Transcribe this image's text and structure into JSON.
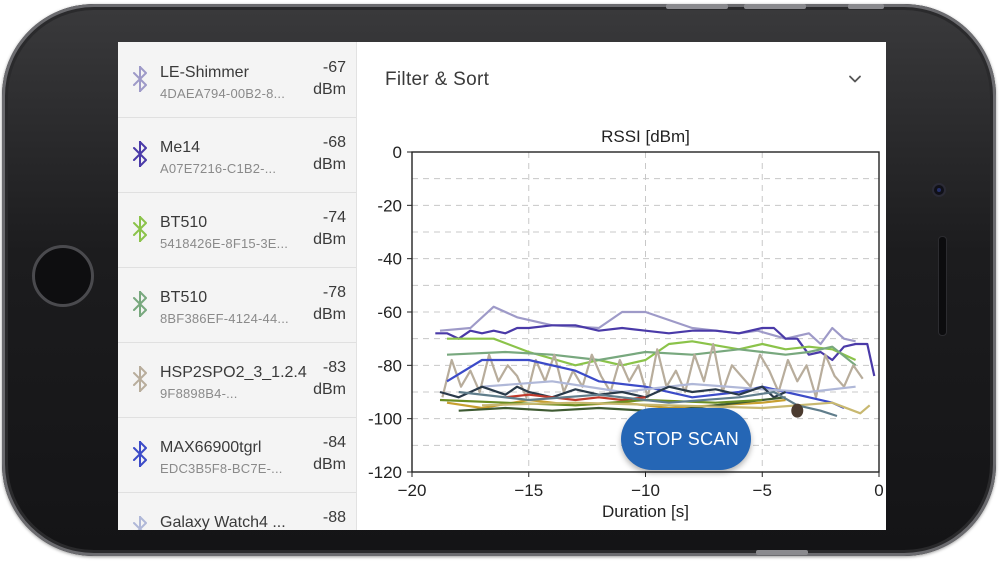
{
  "devices": [
    {
      "name": "LE-Shimmer",
      "id": "4DAEA794-00B2-8...",
      "rssi_value": "-67",
      "rssi_unit": "dBm",
      "color": "#9e9ac8"
    },
    {
      "name": "Me14",
      "id": "A07E7216-C1B2-...",
      "rssi_value": "-68",
      "rssi_unit": "dBm",
      "color": "#4a3aa8"
    },
    {
      "name": "BT510",
      "id": "5418426E-8F15-3E...",
      "rssi_value": "-74",
      "rssi_unit": "dBm",
      "color": "#8bc34a"
    },
    {
      "name": "BT510",
      "id": "8BF386EF-4124-44...",
      "rssi_value": "-78",
      "rssi_unit": "dBm",
      "color": "#78a87e"
    },
    {
      "name": "HSP2SPO2_3_1.2.4",
      "id": "9F8898B4-...",
      "rssi_value": "-83",
      "rssi_unit": "dBm",
      "color": "#b8ad9c"
    },
    {
      "name": "MAX66900tgrl",
      "id": "EDC3B5F8-BC7E-...",
      "rssi_value": "-84",
      "rssi_unit": "dBm",
      "color": "#3c4bc8"
    },
    {
      "name": "Galaxy Watch4 ...",
      "id": "",
      "rssi_value": "-88",
      "rssi_unit": "",
      "color": "#b0b8d8"
    }
  ],
  "filter": {
    "title": "Filter & Sort",
    "icon": "chevron-down-icon"
  },
  "fab": {
    "label": "STOP SCAN",
    "color": "#2566b5"
  },
  "chart_data": {
    "type": "line",
    "title": "RSSI [dBm]",
    "xlabel": "Duration [s]",
    "ylabel": "",
    "xlim": [
      -20,
      0
    ],
    "ylim": [
      -120,
      0
    ],
    "xticks": [
      -20,
      -15,
      -10,
      -5,
      0
    ],
    "xtick_labels": [
      "−20",
      "−15",
      "−10",
      "−5",
      "0"
    ],
    "yticks": [
      0,
      -20,
      -40,
      -60,
      -80,
      -100,
      -120
    ],
    "grid": true,
    "series": [
      {
        "color": "#9e9ac8",
        "x": [
          -18.8,
          -17.5,
          -16.5,
          -15.5,
          -14,
          -12,
          -11,
          -10,
          -8,
          -6,
          -5.2,
          -4,
          -3,
          -2.5,
          -2,
          -1.5,
          -1
        ],
        "y": [
          -67,
          -66,
          -58,
          -62,
          -65,
          -66,
          -60,
          -60,
          -66,
          -68,
          -67,
          -70,
          -68,
          -72,
          -66,
          -70,
          -71
        ]
      },
      {
        "color": "#4a3aa8",
        "x": [
          -19,
          -18.5,
          -18,
          -17.5,
          -17,
          -16.5,
          -16,
          -15.5,
          -15,
          -14,
          -13,
          -12,
          -11,
          -10,
          -9,
          -8,
          -7,
          -6,
          -5,
          -4.5,
          -4,
          -3.5,
          -3,
          -2.5,
          -2,
          -1.5,
          -1,
          -0.5,
          -0.2
        ],
        "y": [
          -68,
          -68,
          -70,
          -67,
          -68,
          -67,
          -68,
          -66,
          -66,
          -65,
          -65,
          -67,
          -66,
          -67,
          -68,
          -67,
          -67,
          -68,
          -66,
          -66,
          -70,
          -70,
          -76,
          -75,
          -78,
          -73,
          -72,
          -72,
          -84
        ]
      },
      {
        "color": "#8bc34a",
        "x": [
          -18.5,
          -16.5,
          -15,
          -13,
          -12,
          -11,
          -10,
          -9,
          -8,
          -6,
          -5,
          -4,
          -3,
          -2,
          -1
        ],
        "y": [
          -70,
          -70,
          -75,
          -80,
          -78,
          -80,
          -78,
          -72,
          -71,
          -74,
          -72,
          -74,
          -73,
          -74,
          -78
        ]
      },
      {
        "color": "#78a87e",
        "x": [
          -18.5,
          -16,
          -14,
          -12,
          -10,
          -8,
          -6,
          -5,
          -4,
          -3,
          -2,
          -1
        ],
        "y": [
          -76,
          -75,
          -76,
          -78,
          -75,
          -76,
          -74,
          -75,
          -76,
          -75,
          -73,
          -80
        ]
      },
      {
        "color": "#b8ad9c",
        "x": [
          -18.7,
          -18.3,
          -17.9,
          -17.5,
          -17.1,
          -16.7,
          -16.3,
          -15.9,
          -15.5,
          -15.1,
          -14.7,
          -14.3,
          -13.9,
          -13.5,
          -13.1,
          -12.7,
          -12.3,
          -11.9,
          -11.5,
          -11.1,
          -10.7,
          -10.3,
          -9.9,
          -9.5,
          -9.1,
          -8.7,
          -8.3,
          -7.9,
          -7.5,
          -7.1,
          -6.7,
          -6.3,
          -5.9,
          -5.5,
          -5.1,
          -4.7,
          -4.3,
          -3.9,
          -3.5,
          -3.1,
          -2.7,
          -2.3,
          -1.9,
          -1.5,
          -1.1,
          -0.7
        ],
        "y": [
          -92,
          -78,
          -88,
          -82,
          -90,
          -76,
          -86,
          -80,
          -84,
          -92,
          -78,
          -86,
          -76,
          -90,
          -82,
          -88,
          -76,
          -84,
          -90,
          -78,
          -86,
          -80,
          -92,
          -74,
          -88,
          -82,
          -90,
          -76,
          -86,
          -72,
          -90,
          -80,
          -84,
          -88,
          -76,
          -82,
          -90,
          -78,
          -86,
          -80,
          -92,
          -76,
          -84,
          -88,
          -80,
          -85
        ]
      },
      {
        "color": "#3c4bc8",
        "x": [
          -18.5,
          -17,
          -15,
          -13,
          -12,
          -10,
          -8,
          -6,
          -5,
          -4,
          -3,
          -2,
          -1.5
        ],
        "y": [
          -86,
          -78,
          -78,
          -82,
          -86,
          -88,
          -92,
          -90,
          -88,
          -90,
          -92,
          -94,
          -96
        ]
      },
      {
        "color": "#b0b8d8",
        "x": [
          -17,
          -14,
          -11,
          -8,
          -5,
          -3,
          -1
        ],
        "y": [
          -88,
          -86,
          -90,
          -87,
          -89,
          -90,
          -88
        ]
      },
      {
        "color": "#2a3a4a",
        "x": [
          -18.8,
          -18,
          -17,
          -16,
          -15.5,
          -15,
          -14,
          -13,
          -12,
          -11,
          -10,
          -9,
          -8,
          -7,
          -6,
          -5,
          -4.5,
          -4
        ],
        "y": [
          -90,
          -92,
          -88,
          -91,
          -88,
          -90,
          -92,
          -89,
          -91,
          -90,
          -92,
          -88,
          -90,
          -89,
          -91,
          -88,
          -92,
          -90
        ]
      },
      {
        "color": "#c8a030",
        "x": [
          -18.5,
          -17,
          -15,
          -13,
          -11,
          -9,
          -7,
          -5,
          -4
        ],
        "y": [
          -94,
          -96,
          -93,
          -95,
          -94,
          -96,
          -95,
          -94,
          -93
        ]
      },
      {
        "color": "#c0392b",
        "x": [
          -16,
          -15,
          -14,
          -13,
          -12,
          -11,
          -10
        ],
        "y": [
          -92,
          -91,
          -92,
          -93,
          -92,
          -93,
          -92
        ]
      },
      {
        "color": "#3e5a32",
        "x": [
          -18,
          -16,
          -14,
          -12,
          -10,
          -9.5,
          -8,
          -6,
          -4
        ],
        "y": [
          -97,
          -96,
          -97,
          -96,
          -97,
          -98,
          -96,
          -94,
          -92
        ]
      },
      {
        "color": "#6b8e23",
        "x": [
          -18.8,
          -16,
          -13,
          -10,
          -7,
          -5
        ],
        "y": [
          -93,
          -94,
          -95,
          -93,
          -94,
          -93
        ]
      },
      {
        "color": "#c8b870",
        "x": [
          -17,
          -13,
          -9,
          -5,
          -2,
          -0.8,
          -0.4
        ],
        "y": [
          -95,
          -94,
          -95,
          -96,
          -94,
          -98,
          -95
        ]
      },
      {
        "color": "#607d8b",
        "x": [
          -18,
          -15,
          -12,
          -9,
          -6,
          -4.5,
          -3.5,
          -2.5,
          -1.8
        ],
        "y": [
          -90,
          -93,
          -91,
          -94,
          -92,
          -90,
          -95,
          -97,
          -99
        ]
      },
      {
        "color": "#4b3b2f",
        "x": [
          -3.5
        ],
        "y": [
          -97
        ],
        "marker": true
      }
    ]
  }
}
